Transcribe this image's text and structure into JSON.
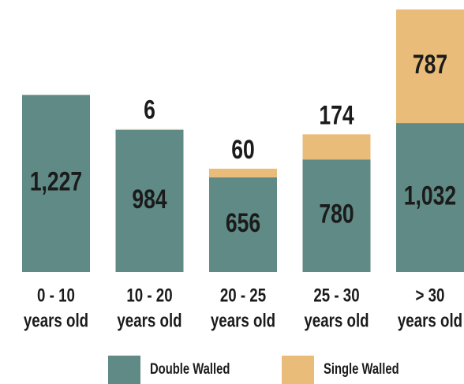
{
  "chart_data": {
    "type": "stacked_bar",
    "categories": [
      "0 - 10\nyears old",
      "10 - 20\nyears old",
      "20 - 25\nyears old",
      "25 - 30\nyears old",
      "> 30\nyears old"
    ],
    "series": [
      {
        "name": "Double Walled",
        "color": "#5f8a85",
        "values": [
          1227,
          984,
          656,
          780,
          1032
        ],
        "value_labels": [
          "1,227",
          "984",
          "656",
          "780",
          "1,032"
        ]
      },
      {
        "name": "Single Walled",
        "color": "#e9bd79",
        "values": [
          null,
          6,
          60,
          174,
          787
        ]
      }
    ]
  }
}
